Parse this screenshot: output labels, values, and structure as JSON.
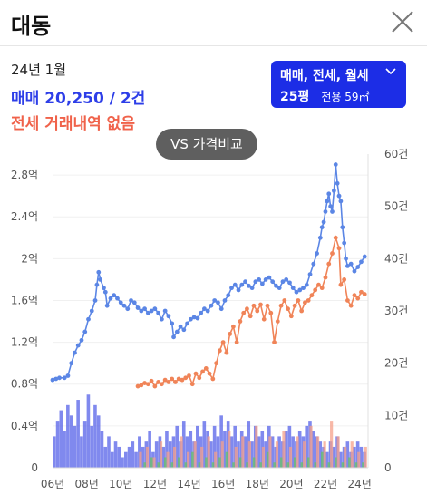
{
  "header": {
    "title": "대동"
  },
  "summary": {
    "date": "24년 1월",
    "sale": "매매 20,250 / 2건",
    "jeonse": "전세 거래내역 없음"
  },
  "filter": {
    "types": "매매, 전세, 월세",
    "pyeong": "25평",
    "area": "전용 59㎡"
  },
  "compare_button": "VS 가격비교",
  "colors": {
    "sale": "#5b86e5",
    "jeonse": "#f08458",
    "accent": "#1c2de6"
  },
  "chart_data": {
    "type": "line",
    "x_ticks": [
      "06년",
      "08년",
      "10년",
      "12년",
      "14년",
      "16년",
      "18년",
      "20년",
      "22년",
      "24년"
    ],
    "x_range": [
      2006.0,
      2024.5
    ],
    "y_left": {
      "ticks": [
        "0",
        "0.4억",
        "0.8억",
        "1.2억",
        "1.6억",
        "2억",
        "2.4억",
        "2.8억"
      ],
      "range": [
        0,
        3.0
      ]
    },
    "y_right": {
      "ticks": [
        "0",
        "10건",
        "20건",
        "30건",
        "40건",
        "50건",
        "60건"
      ],
      "range": [
        0,
        60
      ]
    },
    "series": [
      {
        "points": [
          [
            2006.0,
            0.84
          ],
          [
            2006.2,
            0.85
          ],
          [
            2006.4,
            0.86
          ],
          [
            2006.7,
            0.86
          ],
          [
            2006.9,
            0.88
          ],
          [
            2007.1,
            1.0
          ],
          [
            2007.3,
            1.1
          ],
          [
            2007.5,
            1.17
          ],
          [
            2007.7,
            1.22
          ],
          [
            2007.9,
            1.3
          ],
          [
            2008.1,
            1.42
          ],
          [
            2008.3,
            1.5
          ],
          [
            2008.5,
            1.6
          ],
          [
            2008.6,
            1.75
          ],
          [
            2008.7,
            1.87
          ],
          [
            2008.8,
            1.8
          ],
          [
            2009.0,
            1.72
          ],
          [
            2009.1,
            1.68
          ],
          [
            2009.2,
            1.55
          ],
          [
            2009.4,
            1.62
          ],
          [
            2009.6,
            1.65
          ],
          [
            2009.8,
            1.62
          ],
          [
            2010.0,
            1.58
          ],
          [
            2010.2,
            1.55
          ],
          [
            2010.4,
            1.52
          ],
          [
            2010.6,
            1.6
          ],
          [
            2010.8,
            1.58
          ],
          [
            2011.0,
            1.53
          ],
          [
            2011.2,
            1.5
          ],
          [
            2011.4,
            1.52
          ],
          [
            2011.6,
            1.48
          ],
          [
            2011.8,
            1.5
          ],
          [
            2012.0,
            1.52
          ],
          [
            2012.2,
            1.48
          ],
          [
            2012.4,
            1.42
          ],
          [
            2012.6,
            1.5
          ],
          [
            2012.8,
            1.45
          ],
          [
            2013.0,
            1.38
          ],
          [
            2013.1,
            1.25
          ],
          [
            2013.3,
            1.3
          ],
          [
            2013.5,
            1.35
          ],
          [
            2013.7,
            1.32
          ],
          [
            2013.9,
            1.38
          ],
          [
            2014.1,
            1.42
          ],
          [
            2014.3,
            1.44
          ],
          [
            2014.5,
            1.43
          ],
          [
            2014.7,
            1.48
          ],
          [
            2014.9,
            1.52
          ],
          [
            2015.1,
            1.5
          ],
          [
            2015.3,
            1.55
          ],
          [
            2015.5,
            1.6
          ],
          [
            2015.7,
            1.58
          ],
          [
            2015.9,
            1.52
          ],
          [
            2016.1,
            1.6
          ],
          [
            2016.3,
            1.65
          ],
          [
            2016.5,
            1.72
          ],
          [
            2016.7,
            1.75
          ],
          [
            2016.9,
            1.7
          ],
          [
            2017.1,
            1.75
          ],
          [
            2017.3,
            1.78
          ],
          [
            2017.5,
            1.74
          ],
          [
            2017.7,
            1.72
          ],
          [
            2017.9,
            1.78
          ],
          [
            2018.1,
            1.8
          ],
          [
            2018.3,
            1.76
          ],
          [
            2018.5,
            1.8
          ],
          [
            2018.7,
            1.82
          ],
          [
            2018.9,
            1.78
          ],
          [
            2019.1,
            1.74
          ],
          [
            2019.3,
            1.72
          ],
          [
            2019.5,
            1.78
          ],
          [
            2019.7,
            1.8
          ],
          [
            2019.9,
            1.77
          ],
          [
            2020.1,
            1.72
          ],
          [
            2020.3,
            1.68
          ],
          [
            2020.5,
            1.7
          ],
          [
            2020.7,
            1.72
          ],
          [
            2020.9,
            1.75
          ],
          [
            2021.1,
            1.85
          ],
          [
            2021.3,
            1.95
          ],
          [
            2021.5,
            2.05
          ],
          [
            2021.7,
            2.2
          ],
          [
            2021.8,
            2.3
          ],
          [
            2021.9,
            2.35
          ],
          [
            2022.0,
            2.45
          ],
          [
            2022.1,
            2.55
          ],
          [
            2022.2,
            2.62
          ],
          [
            2022.3,
            2.5
          ],
          [
            2022.4,
            2.45
          ],
          [
            2022.5,
            2.65
          ],
          [
            2022.6,
            2.9
          ],
          [
            2022.7,
            2.72
          ],
          [
            2022.8,
            2.6
          ],
          [
            2022.9,
            2.55
          ],
          [
            2023.0,
            2.3
          ],
          [
            2023.1,
            2.15
          ],
          [
            2023.2,
            2.0
          ],
          [
            2023.3,
            1.93
          ],
          [
            2023.5,
            1.95
          ],
          [
            2023.7,
            1.88
          ],
          [
            2023.9,
            1.92
          ],
          [
            2024.1,
            1.97
          ],
          [
            2024.3,
            2.02
          ]
        ]
      },
      {
        "points": [
          [
            2011.0,
            0.78
          ],
          [
            2011.2,
            0.79
          ],
          [
            2011.4,
            0.81
          ],
          [
            2011.6,
            0.8
          ],
          [
            2011.8,
            0.83
          ],
          [
            2012.0,
            0.78
          ],
          [
            2012.2,
            0.82
          ],
          [
            2012.4,
            0.8
          ],
          [
            2012.6,
            0.84
          ],
          [
            2012.8,
            0.82
          ],
          [
            2013.0,
            0.85
          ],
          [
            2013.2,
            0.82
          ],
          [
            2013.4,
            0.85
          ],
          [
            2013.6,
            0.84
          ],
          [
            2013.8,
            0.86
          ],
          [
            2014.0,
            0.88
          ],
          [
            2014.2,
            0.8
          ],
          [
            2014.4,
            0.9
          ],
          [
            2014.6,
            0.86
          ],
          [
            2014.8,
            0.92
          ],
          [
            2015.0,
            0.95
          ],
          [
            2015.2,
            0.9
          ],
          [
            2015.4,
            0.85
          ],
          [
            2015.6,
            1.0
          ],
          [
            2015.8,
            1.12
          ],
          [
            2016.0,
            1.2
          ],
          [
            2016.2,
            1.1
          ],
          [
            2016.4,
            1.28
          ],
          [
            2016.6,
            1.35
          ],
          [
            2016.8,
            1.2
          ],
          [
            2017.0,
            1.4
          ],
          [
            2017.2,
            1.48
          ],
          [
            2017.4,
            1.52
          ],
          [
            2017.6,
            1.45
          ],
          [
            2017.8,
            1.55
          ],
          [
            2018.0,
            1.5
          ],
          [
            2018.2,
            1.56
          ],
          [
            2018.4,
            1.42
          ],
          [
            2018.6,
            1.55
          ],
          [
            2018.8,
            1.48
          ],
          [
            2019.0,
            1.2
          ],
          [
            2019.2,
            1.4
          ],
          [
            2019.4,
            1.55
          ],
          [
            2019.6,
            1.6
          ],
          [
            2019.8,
            1.52
          ],
          [
            2020.0,
            1.45
          ],
          [
            2020.2,
            1.55
          ],
          [
            2020.4,
            1.6
          ],
          [
            2020.6,
            1.5
          ],
          [
            2020.8,
            1.58
          ],
          [
            2021.0,
            1.6
          ],
          [
            2021.2,
            1.65
          ],
          [
            2021.4,
            1.7
          ],
          [
            2021.6,
            1.75
          ],
          [
            2021.8,
            1.72
          ],
          [
            2022.0,
            1.82
          ],
          [
            2022.2,
            1.95
          ],
          [
            2022.4,
            2.05
          ],
          [
            2022.6,
            2.2
          ],
          [
            2022.8,
            2.1
          ],
          [
            2022.9,
            1.75
          ],
          [
            2023.1,
            1.8
          ],
          [
            2023.3,
            1.6
          ],
          [
            2023.5,
            1.55
          ],
          [
            2023.7,
            1.65
          ],
          [
            2023.9,
            1.62
          ],
          [
            2024.1,
            1.68
          ],
          [
            2024.3,
            1.66
          ]
        ]
      }
    ],
    "volume": [
      {
        "years": [
          2006.0,
          2006.2,
          2006.4,
          2006.6,
          2006.8,
          2007.0,
          2007.2,
          2007.4,
          2007.6,
          2007.8,
          2008.0,
          2008.2,
          2008.4,
          2008.6,
          2008.8,
          2009.0,
          2009.2,
          2009.4,
          2009.6,
          2009.8,
          2010.0,
          2010.2,
          2010.4,
          2010.6,
          2010.8,
          2011.0,
          2011.2,
          2011.4,
          2011.6,
          2011.8,
          2012.0,
          2012.2,
          2012.4,
          2012.6,
          2012.8,
          2013.0,
          2013.2,
          2013.4,
          2013.6,
          2013.8,
          2014.0,
          2014.2,
          2014.4,
          2014.6,
          2014.8,
          2015.0,
          2015.2,
          2015.4,
          2015.6,
          2015.8,
          2016.0,
          2016.2,
          2016.4,
          2016.6,
          2016.8,
          2017.0,
          2017.2,
          2017.4,
          2017.6,
          2017.8,
          2018.0,
          2018.2,
          2018.4,
          2018.6,
          2018.8,
          2019.0,
          2019.2,
          2019.4,
          2019.6,
          2019.8,
          2020.0,
          2020.2,
          2020.4,
          2020.6,
          2020.8,
          2021.0,
          2021.2,
          2021.4,
          2021.6,
          2021.8,
          2022.0,
          2022.2,
          2022.4,
          2022.6,
          2022.8,
          2023.0,
          2023.2,
          2023.4,
          2023.6,
          2023.8,
          2024.0,
          2024.2
        ],
        "counts": [
          6,
          9,
          11,
          7,
          12,
          10,
          8,
          13,
          6,
          9,
          14,
          8,
          12,
          10,
          7,
          4,
          6,
          3,
          5,
          4,
          2,
          3,
          4,
          5,
          3,
          6,
          4,
          5,
          7,
          3,
          5,
          6,
          4,
          7,
          5,
          6,
          8,
          5,
          9,
          6,
          7,
          5,
          8,
          6,
          9,
          7,
          5,
          8,
          6,
          10,
          7,
          9,
          6,
          8,
          5,
          7,
          6,
          9,
          5,
          8,
          6,
          7,
          5,
          8,
          6,
          4,
          6,
          5,
          7,
          8,
          6,
          5,
          7,
          6,
          8,
          9,
          7,
          6,
          5,
          4,
          3,
          5,
          4,
          6,
          3,
          4,
          5,
          3,
          4,
          5,
          4,
          3
        ]
      },
      {
        "years": [
          2011.0,
          2011.4,
          2011.8,
          2012.2,
          2012.6,
          2013.0,
          2013.4,
          2013.8,
          2014.2,
          2014.6,
          2015.0,
          2015.4,
          2015.8,
          2016.2,
          2016.6,
          2017.0,
          2017.4,
          2017.8,
          2018.2,
          2018.6,
          2019.0,
          2019.4,
          2019.8,
          2020.2,
          2020.6,
          2021.0,
          2021.4,
          2021.8,
          2022.2,
          2022.6,
          2023.0,
          2023.4,
          2023.8,
          2024.2
        ],
        "counts": [
          3,
          4,
          2,
          5,
          3,
          4,
          6,
          3,
          5,
          4,
          6,
          3,
          5,
          7,
          4,
          6,
          5,
          8,
          4,
          6,
          5,
          7,
          4,
          6,
          5,
          8,
          6,
          5,
          9,
          6,
          4,
          5,
          3,
          4
        ]
      },
      {
        "years": [
          2011.2,
          2011.6,
          2012.0,
          2012.4,
          2012.8,
          2013.2,
          2013.6,
          2014.0,
          2014.4,
          2014.8,
          2015.2,
          2015.6,
          2016.0,
          2016.4,
          2016.8,
          2017.2,
          2017.6,
          2018.0,
          2018.4,
          2018.8,
          2019.2,
          2019.6,
          2020.0,
          2020.4,
          2020.8,
          2021.2,
          2021.6,
          2022.0,
          2022.4,
          2022.8,
          2023.2,
          2023.6,
          2024.0
        ],
        "counts": [
          1,
          2,
          1,
          2,
          1,
          2,
          1,
          3,
          1,
          2,
          1,
          2,
          3,
          1,
          2,
          1,
          2,
          1,
          3,
          1,
          2,
          1,
          2,
          1,
          2,
          1,
          3,
          1,
          2,
          1,
          2,
          1,
          1
        ]
      }
    ]
  }
}
